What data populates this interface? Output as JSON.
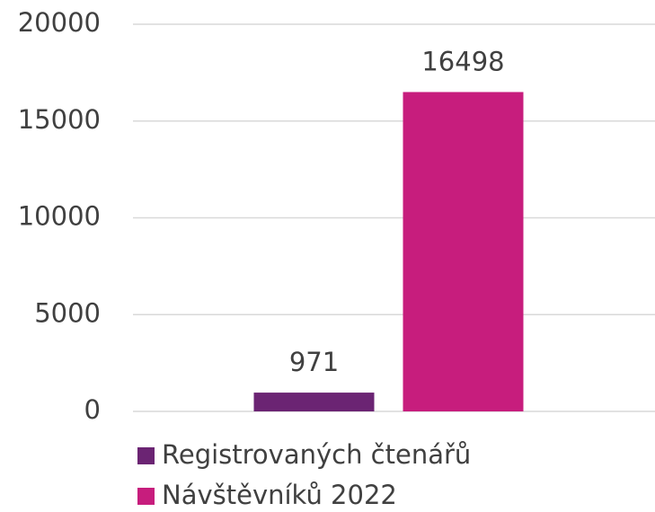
{
  "chart_data": {
    "type": "bar",
    "categories": [
      null
    ],
    "series": [
      {
        "name": "Registrovaných čtenářů",
        "color": "#6b2473",
        "values": [
          971
        ]
      },
      {
        "name": "Návštěvníků 2022",
        "color": "#c71d7d",
        "values": [
          16498
        ]
      }
    ],
    "ylim": [
      0,
      20000
    ],
    "yticks": [
      0,
      5000,
      10000,
      15000,
      20000
    ],
    "grid": true,
    "legend": "bottom"
  }
}
